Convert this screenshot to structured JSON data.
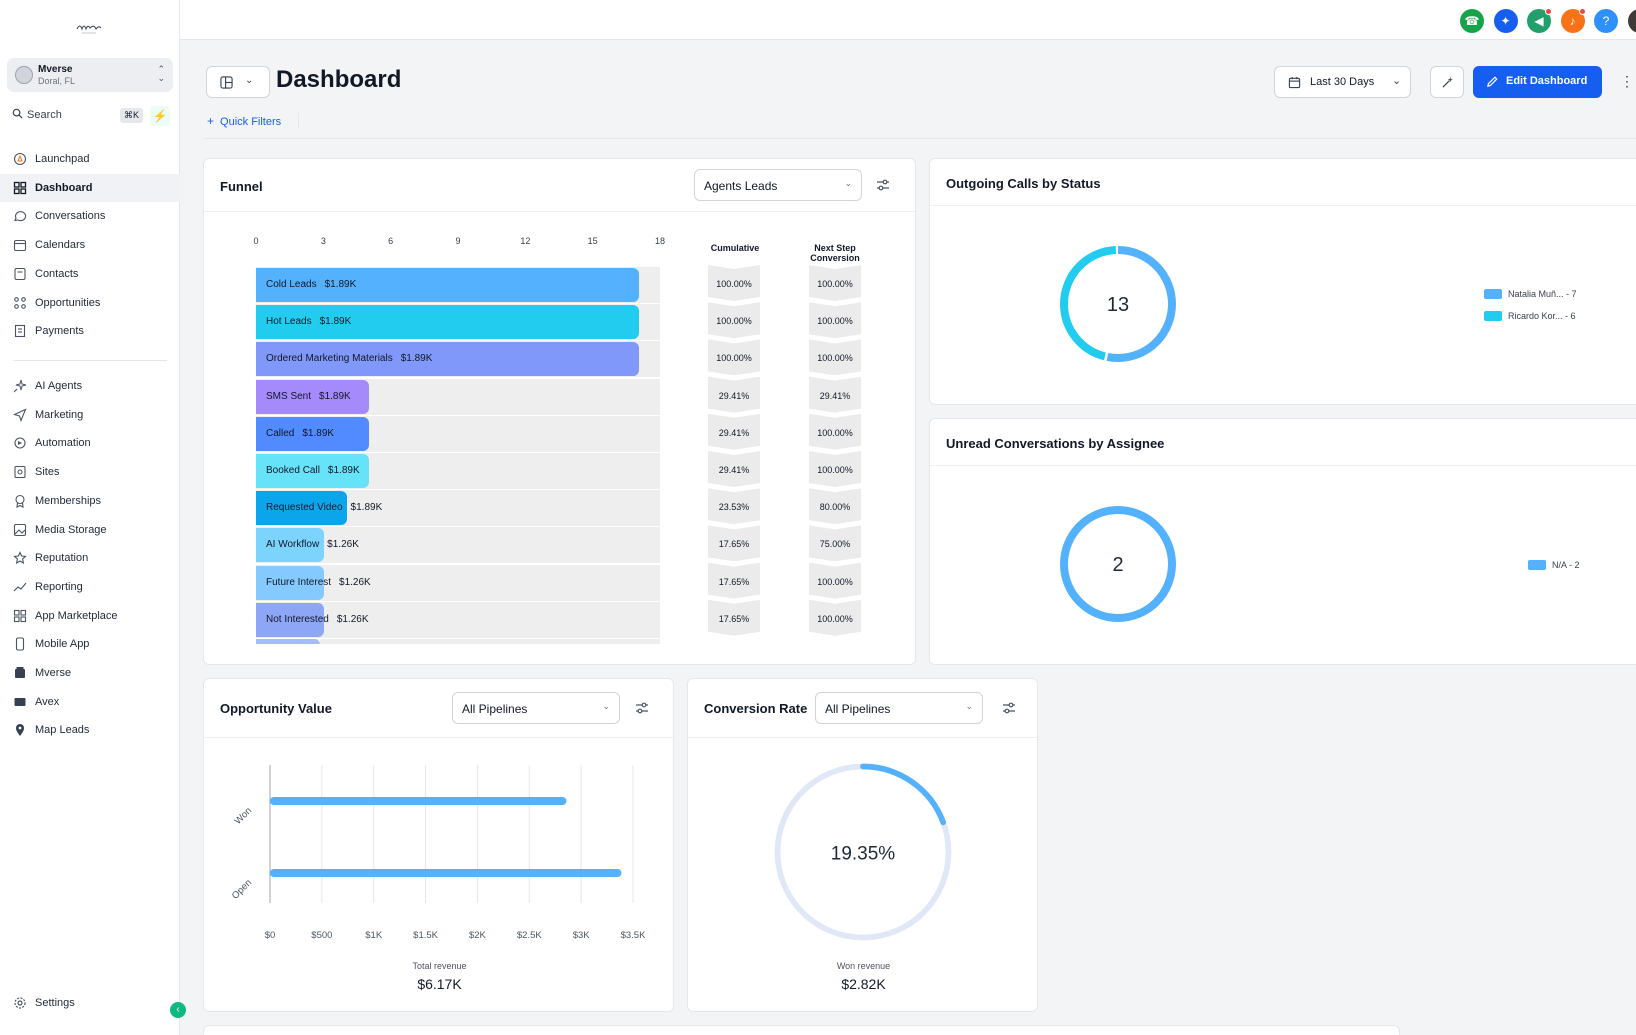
{
  "sidebar": {
    "location": {
      "name": "Mverse",
      "subtitle": "Doral, FL"
    },
    "search": {
      "placeholder": "Search",
      "shortcut": "⌘K"
    },
    "items_top": [
      {
        "label": "Launchpad",
        "icon": "rocket-icon"
      },
      {
        "label": "Dashboard",
        "icon": "grid-icon",
        "active": true
      },
      {
        "label": "Conversations",
        "icon": "chat-icon"
      },
      {
        "label": "Calendars",
        "icon": "calendar-icon"
      },
      {
        "label": "Contacts",
        "icon": "contacts-icon"
      },
      {
        "label": "Opportunities",
        "icon": "opportunities-icon"
      },
      {
        "label": "Payments",
        "icon": "payments-icon"
      }
    ],
    "items_bottom": [
      {
        "label": "AI Agents",
        "icon": "sparkles-icon"
      },
      {
        "label": "Marketing",
        "icon": "send-icon"
      },
      {
        "label": "Automation",
        "icon": "automation-icon"
      },
      {
        "label": "Sites",
        "icon": "sites-icon"
      },
      {
        "label": "Memberships",
        "icon": "award-icon"
      },
      {
        "label": "Media Storage",
        "icon": "image-icon"
      },
      {
        "label": "Reputation",
        "icon": "star-icon"
      },
      {
        "label": "Reporting",
        "icon": "trend-icon"
      },
      {
        "label": "App Marketplace",
        "icon": "apps-icon"
      },
      {
        "label": "Mobile App",
        "icon": "mobile-icon"
      },
      {
        "label": "Mverse",
        "icon": "mverse-icon"
      },
      {
        "label": "Avex",
        "icon": "card-icon"
      },
      {
        "label": "Map Leads",
        "icon": "pin-icon"
      }
    ],
    "settings_label": "Settings"
  },
  "topbar": {
    "buttons": [
      {
        "name": "phone-icon",
        "color": "#16a34a"
      },
      {
        "name": "sparkle-icon",
        "color": "#155eef"
      },
      {
        "name": "megaphone-icon",
        "color": "#22a06b"
      },
      {
        "name": "bell-icon",
        "color": "#f97316"
      },
      {
        "name": "help-icon",
        "color": "#2e90fa"
      }
    ]
  },
  "header": {
    "title": "Dashboard",
    "date_range": "Last 30 Days",
    "edit_label": "Edit Dashboard",
    "quick_filters": "Quick Filters"
  },
  "funnel": {
    "title": "Funnel",
    "select": "Agents Leads",
    "col_cumulative": "Cumulative",
    "col_next": "Next Step Conversion",
    "chart_data": {
      "type": "bar",
      "x_ticks": [
        0,
        3,
        6,
        9,
        12,
        15,
        18
      ],
      "xlim": [
        0,
        18
      ],
      "stages": [
        {
          "name": "Cold Leads",
          "value_label": "$1.89K",
          "count": 17,
          "cumulative": "100.00%",
          "next": "100.00%",
          "color": "#53b1fd"
        },
        {
          "name": "Hot Leads",
          "value_label": "$1.89K",
          "count": 17,
          "cumulative": "100.00%",
          "next": "100.00%",
          "color": "#22ccee"
        },
        {
          "name": "Ordered Marketing Materials",
          "value_label": "$1.89K",
          "count": 17,
          "cumulative": "100.00%",
          "next": "100.00%",
          "color": "#8098f9"
        },
        {
          "name": "SMS Sent",
          "value_label": "$1.89K",
          "count": 5,
          "cumulative": "29.41%",
          "next": "29.41%",
          "color": "#a48afb"
        },
        {
          "name": "Called",
          "value_label": "$1.89K",
          "count": 5,
          "cumulative": "29.41%",
          "next": "100.00%",
          "color": "#528bff"
        },
        {
          "name": "Booked Call",
          "value_label": "$1.89K",
          "count": 5,
          "cumulative": "29.41%",
          "next": "100.00%",
          "color": "#67e3f9"
        },
        {
          "name": "Requested Video",
          "value_label": "$1.89K",
          "count": 4,
          "cumulative": "23.53%",
          "next": "80.00%",
          "color": "#0ba5ec"
        },
        {
          "name": "AI Workflow",
          "value_label": "$1.26K",
          "count": 3,
          "cumulative": "17.65%",
          "next": "75.00%",
          "color": "#7cd4fd"
        },
        {
          "name": "Future Interest",
          "value_label": "$1.26K",
          "count": 3,
          "cumulative": "17.65%",
          "next": "100.00%",
          "color": "#84caff"
        },
        {
          "name": "Not Interested",
          "value_label": "$1.26K",
          "count": 3,
          "cumulative": "17.65%",
          "next": "100.00%",
          "color": "#8ea6f6"
        }
      ]
    }
  },
  "outgoing": {
    "title": "Outgoing Calls by Status",
    "chart_data": {
      "type": "pie",
      "total": "13",
      "slices": [
        {
          "label": "Natalia Muñ... - 7",
          "value": 7,
          "color": "#53b1fd"
        },
        {
          "label": "Ricardo Kor... - 6",
          "value": 6,
          "color": "#22ccee"
        }
      ]
    }
  },
  "unread": {
    "title": "Unread Conversations by Assignee",
    "chart_data": {
      "type": "pie",
      "total": "2",
      "slices": [
        {
          "label": "N/A - 2",
          "value": 2,
          "color": "#53b1fd"
        }
      ]
    }
  },
  "opportunity": {
    "title": "Opportunity Value",
    "select": "All Pipelines",
    "total_label": "Total revenue",
    "total_value": "$6.17K",
    "chart_data": {
      "type": "bar",
      "orientation": "horizontal",
      "categories": [
        "Won",
        "Open"
      ],
      "values": [
        2820,
        3350
      ],
      "x_ticks": [
        "$0",
        "$500",
        "$1K",
        "$1.5K",
        "$2K",
        "$2.5K",
        "$3K",
        "$3.5K"
      ],
      "xlim": [
        0,
        3500
      ],
      "color": "#53b1fd"
    }
  },
  "conversion": {
    "title": "Conversion Rate",
    "select": "All Pipelines",
    "rate": "19.35%",
    "rate_value": 19.35,
    "won_label": "Won revenue",
    "won_value": "$2.82K"
  }
}
